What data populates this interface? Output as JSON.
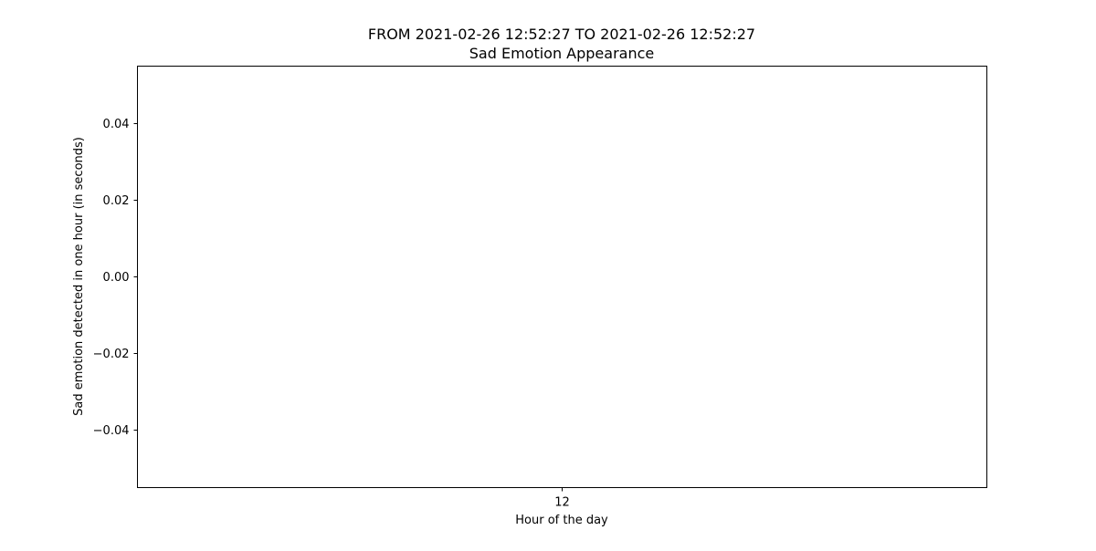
{
  "chart_data": {
    "type": "bar",
    "title": "FROM 2021-02-26 12:52:27 TO 2021-02-26 12:52:27",
    "subtitle": "Sad Emotion Appearance",
    "xlabel": "Hour of the day",
    "ylabel": "Sad emotion detected in one hour (in seconds)",
    "categories": [
      "12"
    ],
    "values": [
      0
    ],
    "ylim": [
      -0.055,
      0.055
    ],
    "yticks": [
      0.04,
      0.02,
      0.0,
      -0.02,
      -0.04
    ],
    "ytick_labels": [
      "0.04",
      "0.02",
      "0.00",
      "−0.02",
      "−0.04"
    ],
    "grid": false,
    "colors": {
      "axis": "#000000",
      "background": "#ffffff"
    }
  }
}
